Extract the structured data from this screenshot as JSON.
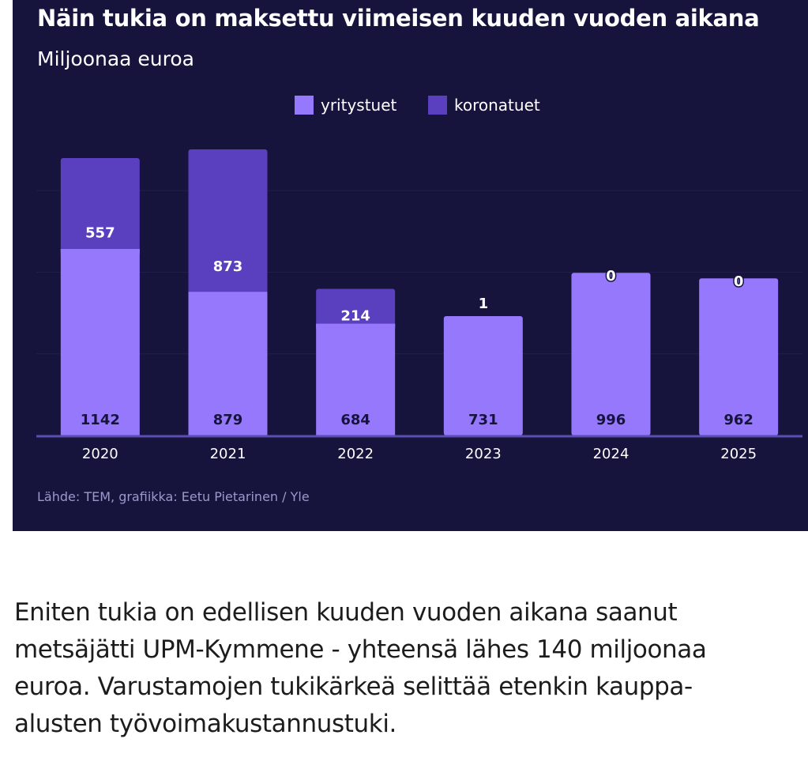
{
  "colors": {
    "background": "#16133d",
    "yritystuet": "#9578fb",
    "koronatuet": "#5a3fbf",
    "axis": "#5a4fb0",
    "grid": "#221f4c",
    "text": "#ffffff",
    "source": "#9c98cc"
  },
  "chart_data": {
    "type": "bar",
    "stacked": true,
    "title": "Näin tukia on maksettu viimeisen kuuden vuoden aikana",
    "subtitle": "Miljoonaa euroa",
    "categories": [
      "2020",
      "2021",
      "2022",
      "2023",
      "2024",
      "2025"
    ],
    "series": [
      {
        "name": "yritystuet",
        "values": [
          1142,
          879,
          684,
          731,
          996,
          962
        ]
      },
      {
        "name": "koronatuet",
        "values": [
          557,
          873,
          214,
          1,
          0,
          0
        ]
      }
    ],
    "ylim": [
      0,
      2000
    ],
    "grid": true,
    "legend": "top-center"
  },
  "source": "Lähde: TEM, grafiikka: Eetu Pietarinen / Yle",
  "article": {
    "lines": [
      "Eniten tukia on edellisen kuuden vuoden aikana saanut",
      "metsäjätti UPM-Kymmene - yhteensä lähes 140 miljoonaa",
      "euroa. Varustamojen tukikärkeä selittää etenkin kauppa-",
      "alusten työvoimakustannustuki."
    ]
  }
}
